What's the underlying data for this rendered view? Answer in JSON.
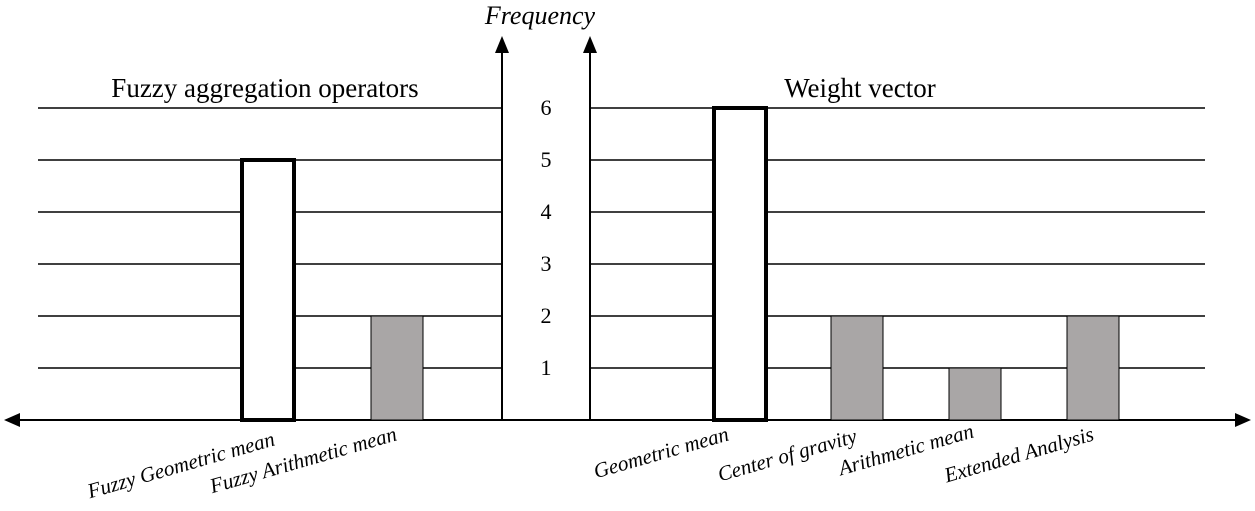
{
  "chart_data": [
    {
      "type": "bar",
      "title": "Fuzzy aggregation operators",
      "categories": [
        "Fuzzy Geometric mean",
        "Fuzzy Arithmetic mean"
      ],
      "values": [
        5,
        2
      ],
      "bar_colors": [
        "#ffffff",
        "#a9a6a6"
      ],
      "ylabel": "Frequency",
      "ylim": [
        0,
        6
      ],
      "y_ticks": [
        "1",
        "2",
        "3",
        "4",
        "5",
        "6"
      ],
      "grid": true
    },
    {
      "type": "bar",
      "title": "Weight vector",
      "categories": [
        "Geometric mean",
        "Center of gravity",
        "Arithmetic mean",
        "Extended Analysis"
      ],
      "values": [
        6,
        2,
        1,
        2
      ],
      "bar_colors": [
        "#ffffff",
        "#a9a6a6",
        "#a9a6a6",
        "#a9a6a6"
      ],
      "ylabel": "Frequency",
      "ylim": [
        0,
        6
      ],
      "y_ticks": [
        "1",
        "2",
        "3",
        "4",
        "5",
        "6"
      ],
      "grid": true
    }
  ],
  "colors": {
    "axis": "#000000",
    "gridline": "#000000",
    "highlight_bar_fill": "#ffffff",
    "other_bar_fill": "#a9a6a6"
  }
}
